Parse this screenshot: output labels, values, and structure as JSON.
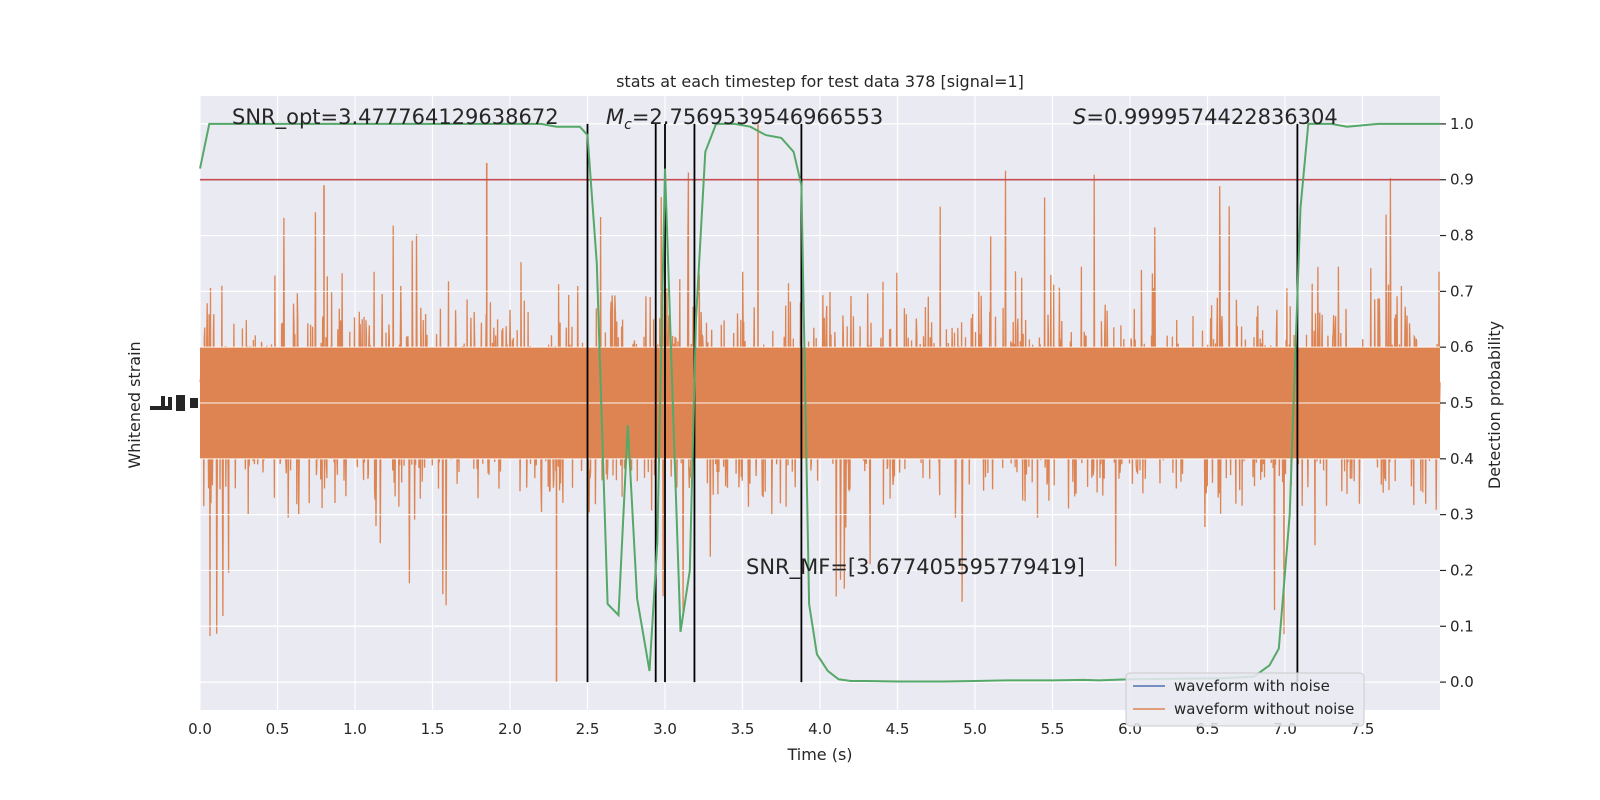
{
  "chart_data": {
    "type": "line",
    "title": "stats at each timestep for test data 378 [signal=1]",
    "xlabel": "Time (s)",
    "ylabel_left": "Whitened strain",
    "ylabel_right": "Detection probability",
    "xlim": [
      0.0,
      8.0
    ],
    "ylim_right": [
      -0.05,
      1.05
    ],
    "x_ticks": [
      "0.0",
      "0.5",
      "1.0",
      "1.5",
      "2.0",
      "2.5",
      "3.0",
      "3.5",
      "4.0",
      "4.5",
      "5.0",
      "5.5",
      "6.0",
      "6.5",
      "7.0",
      "7.5"
    ],
    "y_right_ticks": [
      "0.0",
      "0.1",
      "0.2",
      "0.3",
      "0.4",
      "0.5",
      "0.6",
      "0.7",
      "0.8",
      "0.9",
      "1.0"
    ],
    "grid": true,
    "legend_position": "bottom-right",
    "annotations": {
      "snr_opt": "SNR_opt=3.477764129638672",
      "mc_symbol": "M",
      "mc_sub": "c",
      "mc_value": "=2.7569539546966553",
      "s_symbol": "S",
      "s_value": "=0.9999574422836304",
      "snr_mf": "SNR_MF=[3.677405595779419]"
    },
    "threshold": 0.9,
    "vertical_lines_x": [
      2.5,
      2.94,
      3.0,
      3.19,
      3.88,
      7.08
    ],
    "series": [
      {
        "name": "waveform with noise",
        "color": "#4c72b0",
        "x": [],
        "y": []
      },
      {
        "name": "waveform without noise",
        "color": "#dd8452",
        "noise_center": 0.5,
        "noise_envelope_typical": [
          0.3,
          0.7
        ],
        "noise_extremes": [
          0.0,
          1.0
        ]
      },
      {
        "color": "#55a868",
        "x": [
          0.0,
          0.06,
          0.3,
          0.6,
          1.0,
          1.4,
          1.8,
          2.2,
          2.3,
          2.45,
          2.5,
          2.56,
          2.63,
          2.7,
          2.76,
          2.82,
          2.9,
          2.95,
          3.0,
          3.05,
          3.1,
          3.16,
          3.2,
          3.26,
          3.33,
          3.45,
          3.55,
          3.65,
          3.75,
          3.83,
          3.88,
          3.93,
          3.98,
          4.05,
          4.12,
          4.2,
          4.3,
          4.5,
          4.8,
          5.0,
          5.2,
          5.5,
          5.7,
          5.8,
          6.0,
          6.3,
          6.6,
          6.8,
          6.9,
          6.96,
          7.03,
          7.1,
          7.15,
          7.3,
          7.4,
          7.6,
          8.0
        ],
        "y": [
          0.92,
          1.0,
          1.0,
          1.0,
          1.0,
          1.0,
          1.0,
          1.0,
          0.995,
          0.995,
          0.98,
          0.75,
          0.14,
          0.12,
          0.46,
          0.15,
          0.02,
          0.25,
          0.92,
          0.5,
          0.09,
          0.2,
          0.65,
          0.95,
          1.0,
          1.0,
          0.995,
          0.98,
          0.975,
          0.95,
          0.89,
          0.14,
          0.05,
          0.02,
          0.005,
          0.002,
          0.002,
          0.001,
          0.001,
          0.002,
          0.003,
          0.003,
          0.004,
          0.003,
          0.005,
          0.006,
          0.007,
          0.01,
          0.03,
          0.06,
          0.3,
          0.85,
          1.0,
          1.0,
          0.995,
          1.0,
          1.0
        ]
      }
    ]
  }
}
